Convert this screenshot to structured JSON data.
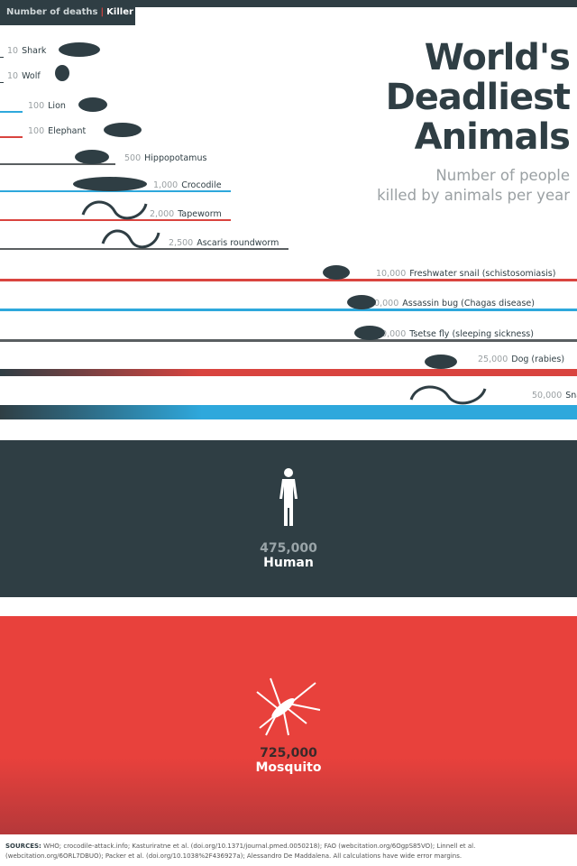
{
  "legend": {
    "deaths": "Number of deaths",
    "separator": "|",
    "killer": "Killer"
  },
  "title": {
    "line1": "World's",
    "line2": "Deadliest",
    "line3": "Animals"
  },
  "subtitle": {
    "line1": "Number of people",
    "line2": "killed by animals per year"
  },
  "colors": {
    "dark": "#2f3e44",
    "red": "#d9443f",
    "blue": "#2ea8dc",
    "gray": "#5a5f61",
    "mosquito": "#e8413c"
  },
  "chart_data": {
    "type": "bar",
    "title": "World's Deadliest Animals",
    "subtitle": "Number of people killed by animals per year",
    "items": [
      {
        "name": "Shark",
        "value": 10,
        "label": "10",
        "color": "dark",
        "icon": "shark-icon"
      },
      {
        "name": "Wolf",
        "value": 10,
        "label": "10",
        "color": "dark",
        "icon": "wolf-icon"
      },
      {
        "name": "Lion",
        "value": 100,
        "label": "100",
        "color": "blue",
        "icon": "lion-icon"
      },
      {
        "name": "Elephant",
        "value": 100,
        "label": "100",
        "color": "red",
        "icon": "elephant-icon"
      },
      {
        "name": "Hippopotamus",
        "value": 500,
        "label": "500",
        "color": "gray",
        "icon": "hippo-icon"
      },
      {
        "name": "Crocodile",
        "value": 1000,
        "label": "1,000",
        "color": "blue",
        "icon": "crocodile-icon"
      },
      {
        "name": "Tapeworm",
        "value": 2000,
        "label": "2,000",
        "color": "red",
        "icon": "tapeworm-icon"
      },
      {
        "name": "Ascaris roundworm",
        "value": 2500,
        "label": "2,500",
        "color": "gray",
        "icon": "roundworm-icon"
      },
      {
        "name": "Freshwater snail (schistosomiasis)",
        "value": 10000,
        "label": "10,000",
        "color": "red",
        "icon": "snail-icon"
      },
      {
        "name": "Assassin bug (Chagas disease)",
        "value": 10000,
        "label": "10,000",
        "color": "blue",
        "icon": "bug-icon"
      },
      {
        "name": "Tsetse fly (sleeping sickness)",
        "value": 10000,
        "label": "10,000",
        "color": "gray",
        "icon": "fly-icon"
      },
      {
        "name": "Dog (rabies)",
        "value": 25000,
        "label": "25,000",
        "color": "red",
        "icon": "dog-icon"
      },
      {
        "name": "Snake",
        "value": 50000,
        "label": "50,000",
        "color": "blue",
        "icon": "snake-icon"
      },
      {
        "name": "Human",
        "value": 475000,
        "label": "475,000",
        "icon": "human-icon"
      },
      {
        "name": "Mosquito",
        "value": 725000,
        "label": "725,000",
        "icon": "mosquito-icon"
      }
    ]
  },
  "human": {
    "number": "475,000",
    "name": "Human"
  },
  "mosquito": {
    "number": "725,000",
    "name": "Mosquito"
  },
  "sources": {
    "label": "SOURCES:",
    "text": "WHO; crocodile-attack.info; Kasturiratne et al. (doi.org/10.1371/journal.pmed.0050218); FAO (webcitation.org/6OgpS85VO); Linnell et al. (webcitation.org/6ORL7DBUO); Packer et al. (doi.org/10.1038%2F436927a); Alessandro De Maddalena.  All calculations have wide error margins."
  }
}
